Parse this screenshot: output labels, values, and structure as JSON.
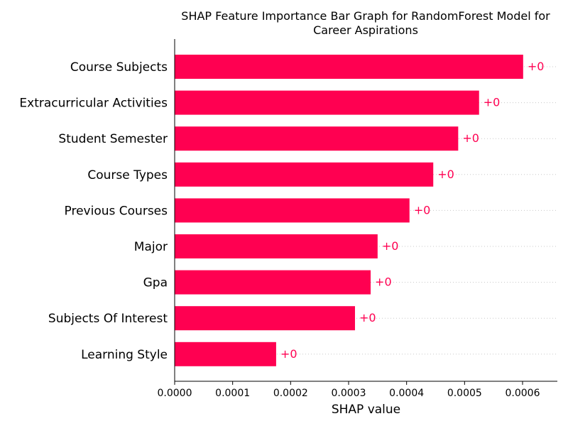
{
  "chart_data": {
    "type": "bar",
    "orientation": "horizontal",
    "title_lines": [
      "SHAP Feature Importance Bar Graph for RandomForest Model for",
      "Career Aspirations"
    ],
    "xlabel": "SHAP value",
    "ylabel": "",
    "xlim": [
      0,
      0.00066
    ],
    "x_ticks": [
      "0.0000",
      "0.0001",
      "0.0002",
      "0.0003",
      "0.0004",
      "0.0005",
      "0.0006"
    ],
    "x_tick_values": [
      0,
      0.0001,
      0.0002,
      0.0003,
      0.0004,
      0.0005,
      0.0006
    ],
    "categories": [
      "Course Subjects",
      "Extracurricular Activities",
      "Student Semester",
      "Course Types",
      "Previous Courses",
      "Major",
      "Gpa",
      "Subjects Of Interest",
      "Learning Style"
    ],
    "values": [
      0.000601,
      0.000525,
      0.000489,
      0.000446,
      0.000405,
      0.00035,
      0.000338,
      0.000311,
      0.000175
    ],
    "data_labels": [
      "+0",
      "+0",
      "+0",
      "+0",
      "+0",
      "+0",
      "+0",
      "+0",
      "+0"
    ],
    "bar_color": "#ff0051",
    "grid": "dotted horizontal guide lines per row",
    "legend": "none"
  }
}
